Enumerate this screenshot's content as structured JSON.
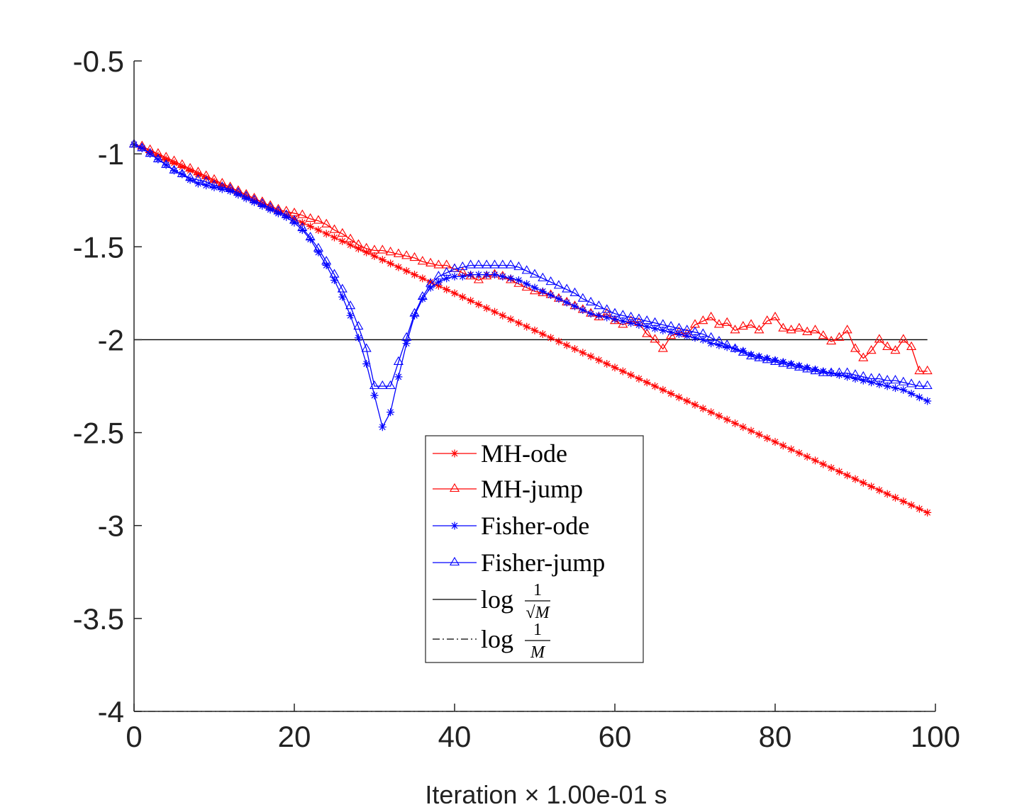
{
  "chart_data": {
    "type": "line",
    "xlabel": "Iteration × 1.00e-01 s",
    "ylabel": "",
    "title": "",
    "xlim": [
      0,
      100
    ],
    "ylim": [
      -4,
      -0.5
    ],
    "x_ticks": [
      0,
      20,
      40,
      60,
      80,
      100
    ],
    "y_ticks": [
      -0.5,
      -1,
      -1.5,
      -2,
      -2.5,
      -3,
      -3.5,
      -4
    ],
    "x_tick_labels": [
      "0",
      "20",
      "40",
      "60",
      "80",
      "100"
    ],
    "y_tick_labels": [
      "-0.5",
      "-1",
      "-1.5",
      "-2",
      "-2.5",
      "-3",
      "-3.5",
      "-4"
    ],
    "grid": false,
    "legend_position": "center-lower",
    "x": [
      0,
      1,
      2,
      3,
      4,
      5,
      6,
      7,
      8,
      9,
      10,
      11,
      12,
      13,
      14,
      15,
      16,
      17,
      18,
      19,
      20,
      21,
      22,
      23,
      24,
      25,
      26,
      27,
      28,
      29,
      30,
      31,
      32,
      33,
      34,
      35,
      36,
      37,
      38,
      39,
      40,
      41,
      42,
      43,
      44,
      45,
      46,
      47,
      48,
      49,
      50,
      51,
      52,
      53,
      54,
      55,
      56,
      57,
      58,
      59,
      60,
      61,
      62,
      63,
      64,
      65,
      66,
      67,
      68,
      69,
      70,
      71,
      72,
      73,
      74,
      75,
      76,
      77,
      78,
      79,
      80,
      81,
      82,
      83,
      84,
      85,
      86,
      87,
      88,
      89,
      90,
      91,
      92,
      93,
      94,
      95,
      96,
      97,
      98,
      99
    ],
    "series": [
      {
        "name": "MH-ode",
        "color": "#ff0000",
        "marker": "asterisk",
        "line": "solid",
        "values": [
          -0.95,
          -0.97,
          -0.99,
          -1.01,
          -1.03,
          -1.05,
          -1.07,
          -1.09,
          -1.11,
          -1.13,
          -1.15,
          -1.17,
          -1.19,
          -1.21,
          -1.23,
          -1.25,
          -1.27,
          -1.29,
          -1.31,
          -1.33,
          -1.35,
          -1.37,
          -1.39,
          -1.41,
          -1.43,
          -1.45,
          -1.47,
          -1.49,
          -1.51,
          -1.53,
          -1.55,
          -1.57,
          -1.59,
          -1.61,
          -1.63,
          -1.65,
          -1.67,
          -1.69,
          -1.71,
          -1.73,
          -1.75,
          -1.77,
          -1.79,
          -1.81,
          -1.83,
          -1.85,
          -1.87,
          -1.89,
          -1.91,
          -1.93,
          -1.95,
          -1.97,
          -1.99,
          -2.01,
          -2.03,
          -2.05,
          -2.07,
          -2.09,
          -2.11,
          -2.13,
          -2.15,
          -2.17,
          -2.19,
          -2.21,
          -2.23,
          -2.25,
          -2.27,
          -2.29,
          -2.31,
          -2.33,
          -2.35,
          -2.37,
          -2.39,
          -2.41,
          -2.43,
          -2.45,
          -2.47,
          -2.49,
          -2.51,
          -2.53,
          -2.55,
          -2.57,
          -2.59,
          -2.61,
          -2.63,
          -2.65,
          -2.67,
          -2.69,
          -2.71,
          -2.73,
          -2.75,
          -2.77,
          -2.79,
          -2.81,
          -2.83,
          -2.85,
          -2.87,
          -2.89,
          -2.91,
          -2.93
        ]
      },
      {
        "name": "MH-jump",
        "color": "#ff0000",
        "marker": "triangle",
        "line": "solid",
        "values": [
          -0.95,
          -0.96,
          -0.98,
          -1.0,
          -1.02,
          -1.04,
          -1.06,
          -1.08,
          -1.1,
          -1.12,
          -1.14,
          -1.16,
          -1.18,
          -1.2,
          -1.22,
          -1.24,
          -1.26,
          -1.28,
          -1.3,
          -1.31,
          -1.32,
          -1.33,
          -1.35,
          -1.36,
          -1.38,
          -1.41,
          -1.43,
          -1.46,
          -1.49,
          -1.51,
          -1.52,
          -1.52,
          -1.53,
          -1.54,
          -1.55,
          -1.56,
          -1.58,
          -1.59,
          -1.6,
          -1.6,
          -1.62,
          -1.64,
          -1.66,
          -1.68,
          -1.66,
          -1.65,
          -1.66,
          -1.68,
          -1.7,
          -1.72,
          -1.74,
          -1.75,
          -1.76,
          -1.78,
          -1.8,
          -1.82,
          -1.84,
          -1.86,
          -1.88,
          -1.86,
          -1.9,
          -1.92,
          -1.9,
          -1.91,
          -1.97,
          -2.0,
          -2.05,
          -1.98,
          -1.96,
          -1.97,
          -1.92,
          -1.9,
          -1.88,
          -1.92,
          -1.91,
          -1.95,
          -1.93,
          -1.92,
          -1.95,
          -1.9,
          -1.88,
          -1.94,
          -1.95,
          -1.94,
          -1.96,
          -1.95,
          -1.98,
          -2.01,
          -1.99,
          -1.95,
          -2.05,
          -2.1,
          -2.06,
          -2.0,
          -2.04,
          -2.06,
          -2.0,
          -2.04,
          -2.17,
          -2.17
        ]
      },
      {
        "name": "Fisher-ode",
        "color": "#0000ff",
        "marker": "asterisk",
        "line": "solid",
        "values": [
          -0.95,
          -0.97,
          -1.0,
          -1.03,
          -1.06,
          -1.09,
          -1.11,
          -1.14,
          -1.16,
          -1.17,
          -1.18,
          -1.19,
          -1.2,
          -1.22,
          -1.24,
          -1.26,
          -1.28,
          -1.3,
          -1.32,
          -1.34,
          -1.37,
          -1.41,
          -1.46,
          -1.53,
          -1.6,
          -1.68,
          -1.77,
          -1.87,
          -1.99,
          -2.13,
          -2.3,
          -2.47,
          -2.39,
          -2.2,
          -2.02,
          -1.87,
          -1.78,
          -1.72,
          -1.69,
          -1.67,
          -1.66,
          -1.66,
          -1.65,
          -1.65,
          -1.65,
          -1.65,
          -1.66,
          -1.67,
          -1.68,
          -1.7,
          -1.72,
          -1.74,
          -1.76,
          -1.78,
          -1.8,
          -1.82,
          -1.84,
          -1.86,
          -1.87,
          -1.88,
          -1.89,
          -1.9,
          -1.91,
          -1.92,
          -1.93,
          -1.94,
          -1.95,
          -1.96,
          -1.97,
          -1.98,
          -1.99,
          -2.0,
          -2.02,
          -2.03,
          -2.04,
          -2.05,
          -2.06,
          -2.08,
          -2.09,
          -2.1,
          -2.11,
          -2.12,
          -2.13,
          -2.14,
          -2.15,
          -2.16,
          -2.17,
          -2.18,
          -2.19,
          -2.2,
          -2.21,
          -2.22,
          -2.23,
          -2.24,
          -2.25,
          -2.26,
          -2.27,
          -2.29,
          -2.31,
          -2.33
        ]
      },
      {
        "name": "Fisher-jump",
        "color": "#0000ff",
        "marker": "triangle",
        "line": "solid",
        "values": [
          -0.95,
          -0.97,
          -1.0,
          -1.03,
          -1.06,
          -1.09,
          -1.11,
          -1.13,
          -1.14,
          -1.15,
          -1.17,
          -1.18,
          -1.19,
          -1.21,
          -1.23,
          -1.25,
          -1.27,
          -1.29,
          -1.31,
          -1.33,
          -1.36,
          -1.4,
          -1.45,
          -1.51,
          -1.58,
          -1.65,
          -1.73,
          -1.82,
          -1.93,
          -2.05,
          -2.25,
          -2.25,
          -2.25,
          -2.12,
          -1.99,
          -1.86,
          -1.77,
          -1.7,
          -1.66,
          -1.64,
          -1.62,
          -1.61,
          -1.6,
          -1.6,
          -1.6,
          -1.6,
          -1.6,
          -1.6,
          -1.61,
          -1.63,
          -1.65,
          -1.67,
          -1.69,
          -1.71,
          -1.73,
          -1.75,
          -1.78,
          -1.8,
          -1.82,
          -1.84,
          -1.86,
          -1.87,
          -1.88,
          -1.89,
          -1.9,
          -1.91,
          -1.92,
          -1.93,
          -1.94,
          -1.95,
          -1.96,
          -1.97,
          -1.99,
          -2.01,
          -2.03,
          -2.05,
          -2.07,
          -2.09,
          -2.1,
          -2.11,
          -2.12,
          -2.13,
          -2.14,
          -2.15,
          -2.16,
          -2.17,
          -2.18,
          -2.18,
          -2.18,
          -2.18,
          -2.19,
          -2.2,
          -2.21,
          -2.21,
          -2.22,
          -2.22,
          -2.23,
          -2.24,
          -2.25,
          -2.25
        ]
      },
      {
        "name": "log 1/√M",
        "color": "#000000",
        "marker": "none",
        "line": "solid",
        "values": [
          -2,
          -2,
          -2,
          -2,
          -2,
          -2,
          -2,
          -2,
          -2,
          -2,
          -2,
          -2,
          -2,
          -2,
          -2,
          -2,
          -2,
          -2,
          -2,
          -2,
          -2,
          -2,
          -2,
          -2,
          -2,
          -2,
          -2,
          -2,
          -2,
          -2,
          -2,
          -2,
          -2,
          -2,
          -2,
          -2,
          -2,
          -2,
          -2,
          -2,
          -2,
          -2,
          -2,
          -2,
          -2,
          -2,
          -2,
          -2,
          -2,
          -2,
          -2,
          -2,
          -2,
          -2,
          -2,
          -2,
          -2,
          -2,
          -2,
          -2,
          -2,
          -2,
          -2,
          -2,
          -2,
          -2,
          -2,
          -2,
          -2,
          -2,
          -2,
          -2,
          -2,
          -2,
          -2,
          -2,
          -2,
          -2,
          -2,
          -2,
          -2,
          -2,
          -2,
          -2,
          -2,
          -2,
          -2,
          -2,
          -2,
          -2,
          -2,
          -2,
          -2,
          -2,
          -2,
          -2,
          -2,
          -2,
          -2,
          -2
        ]
      },
      {
        "name": "log 1/M",
        "color": "#000000",
        "marker": "none",
        "line": "dashdot",
        "values": [
          -4,
          -4,
          -4,
          -4,
          -4,
          -4,
          -4,
          -4,
          -4,
          -4,
          -4,
          -4,
          -4,
          -4,
          -4,
          -4,
          -4,
          -4,
          -4,
          -4,
          -4,
          -4,
          -4,
          -4,
          -4,
          -4,
          -4,
          -4,
          -4,
          -4,
          -4,
          -4,
          -4,
          -4,
          -4,
          -4,
          -4,
          -4,
          -4,
          -4,
          -4,
          -4,
          -4,
          -4,
          -4,
          -4,
          -4,
          -4,
          -4,
          -4,
          -4,
          -4,
          -4,
          -4,
          -4,
          -4,
          -4,
          -4,
          -4,
          -4,
          -4,
          -4,
          -4,
          -4,
          -4,
          -4,
          -4,
          -4,
          -4,
          -4,
          -4,
          -4,
          -4,
          -4,
          -4,
          -4,
          -4,
          -4,
          -4,
          -4,
          -4,
          -4,
          -4,
          -4,
          -4,
          -4,
          -4,
          -4,
          -4,
          -4,
          -4,
          -4,
          -4,
          -4,
          -4,
          -4,
          -4,
          -4,
          -4,
          -4
        ]
      }
    ],
    "legend": [
      {
        "label": "MH-ode"
      },
      {
        "label": "MH-jump"
      },
      {
        "label": "Fisher-ode"
      },
      {
        "label": "Fisher-jump"
      },
      {
        "label_prefix": "log",
        "frac_num": "1",
        "frac_den": "√M"
      },
      {
        "label_prefix": "log",
        "frac_num": "1",
        "frac_den": "M"
      }
    ]
  }
}
